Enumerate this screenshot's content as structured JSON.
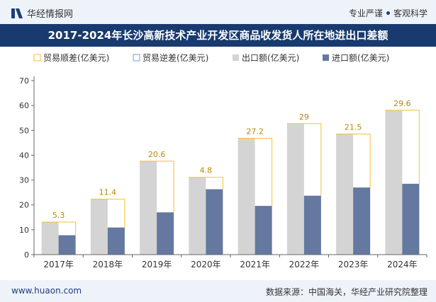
{
  "header": {
    "brand_name": "华经情报网",
    "slogan_left": "专业严谨",
    "slogan_right": "客观科学"
  },
  "title": "2017-2024年长沙高新技术产业开发区商品收发货人所在地进出口差额",
  "footer": {
    "website": "www.huaon.com",
    "source": "数据来源：中国海关，华经产业研究院整理"
  },
  "colors": {
    "export": "#d4d4d4",
    "import": "#6478a0",
    "surplus": "#f2c12e",
    "deficit": "#6a9fd8",
    "title_bg": "#183a6e"
  },
  "chart_data": {
    "type": "bar",
    "categories": [
      "2017年",
      "2018年",
      "2019年",
      "2020年",
      "2021年",
      "2022年",
      "2023年",
      "2024年"
    ],
    "series": [
      {
        "name": "出口额(亿美元)",
        "values": [
          13.1,
          22.3,
          37.6,
          31.1,
          46.8,
          52.7,
          48.5,
          58.1
        ]
      },
      {
        "name": "进口额(亿美元)",
        "values": [
          7.8,
          10.9,
          17.0,
          26.3,
          19.6,
          23.7,
          27.0,
          28.5
        ]
      }
    ],
    "balance": {
      "surplus_name": "贸易顺差(亿美元)",
      "deficit_name": "贸易逆差(亿美元)",
      "values": [
        5.3,
        11.4,
        20.6,
        4.8,
        27.2,
        29,
        21.5,
        29.6
      ],
      "labels": [
        "5.3",
        "11.4",
        "20.6",
        "4.8",
        "27.2",
        "29",
        "21.5",
        "29.6"
      ]
    },
    "legend": [
      "贸易顺差(亿美元)",
      "贸易逆差(亿美元)",
      "出口额(亿美元)",
      "进口额(亿美元)"
    ],
    "legend_position": "top",
    "y_ticks": [
      "0",
      "10",
      "20",
      "30",
      "40",
      "50",
      "60",
      "70"
    ],
    "ylim": [
      0,
      70
    ],
    "grid": false
  }
}
